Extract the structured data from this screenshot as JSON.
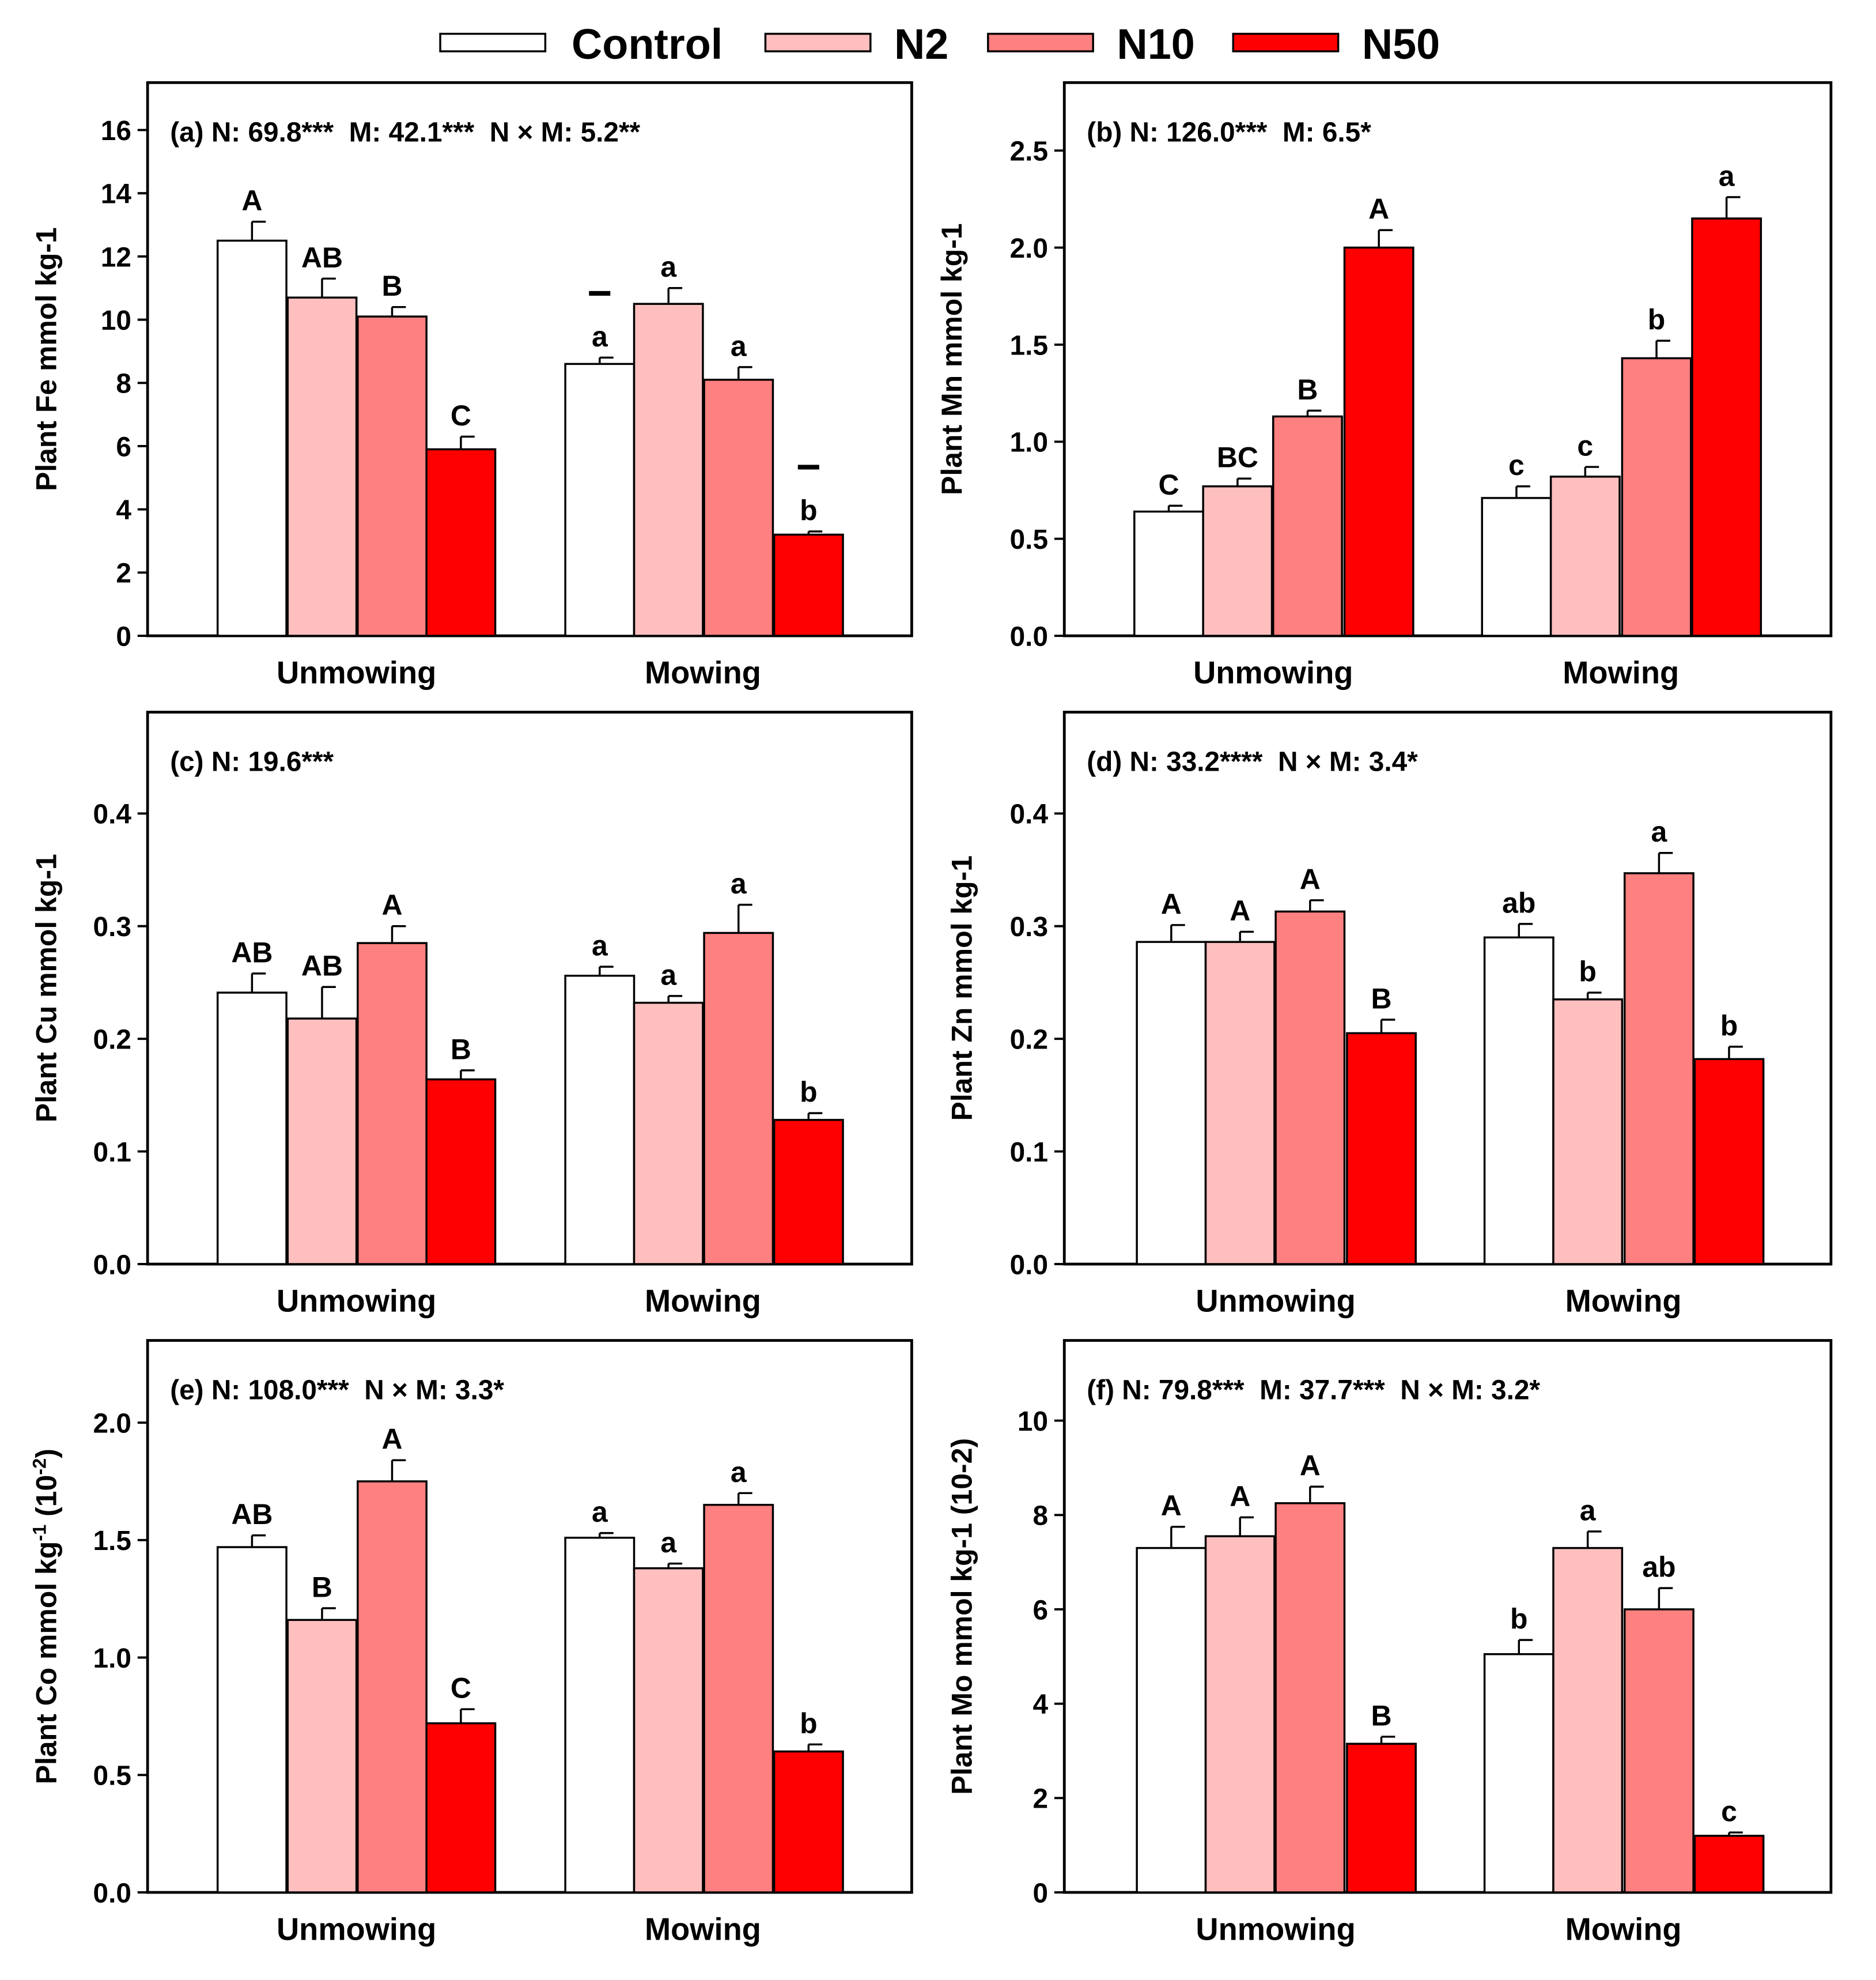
{
  "legend": {
    "items": [
      {
        "label": "Control",
        "color": "#ffffff"
      },
      {
        "label": "N2",
        "color": "#ffbfbf"
      },
      {
        "label": "N10",
        "color": "#ff8080"
      },
      {
        "label": "N50",
        "color": "#ff0000"
      }
    ]
  },
  "chart_data": [
    {
      "type": "bar",
      "panel": "a",
      "title": "(a) N: 69.8***  M: 42.1***  N × M: 5.2**",
      "ylabel": "Plant Fe mmol kg-1",
      "xlabel": "",
      "categories": [
        "Unmowing",
        "Mowing"
      ],
      "ylim": [
        0,
        17.5
      ],
      "yticks": [
        0,
        2,
        4,
        6,
        8,
        10,
        12,
        14,
        16
      ],
      "ytick_labels": [
        "0",
        "2",
        "4",
        "6",
        "8",
        "10",
        "12",
        "14",
        "16"
      ],
      "series": [
        {
          "name": "Control",
          "values": [
            12.5,
            8.6
          ],
          "errors": [
            0.6,
            0.2
          ],
          "letters": [
            "A",
            "a"
          ]
        },
        {
          "name": "N2",
          "values": [
            10.7,
            10.5
          ],
          "errors": [
            0.6,
            0.5
          ],
          "letters": [
            "AB",
            "a"
          ]
        },
        {
          "name": "N10",
          "values": [
            10.1,
            8.1
          ],
          "errors": [
            0.3,
            0.4
          ],
          "letters": [
            "B",
            "a"
          ]
        },
        {
          "name": "N50",
          "values": [
            5.9,
            3.2
          ],
          "errors": [
            0.4,
            0.1
          ],
          "letters": [
            "C",
            "b"
          ]
        }
      ],
      "marks": [
        {
          "series": "Control",
          "category": "Mowing",
          "symbol": "−"
        },
        {
          "series": "N50",
          "category": "Mowing",
          "symbol": "−"
        }
      ]
    },
    {
      "type": "bar",
      "panel": "b",
      "title": "(b) N: 126.0***  M: 6.5*",
      "ylabel": "Plant Mn mmol kg-1",
      "xlabel": "",
      "categories": [
        "Unmowing",
        "Mowing"
      ],
      "ylim": [
        0,
        2.85
      ],
      "yticks": [
        0,
        0.5,
        1.0,
        1.5,
        2.0,
        2.5
      ],
      "ytick_labels": [
        "0.0",
        "0.5",
        "1.0",
        "1.5",
        "2.0",
        "2.5"
      ],
      "series": [
        {
          "name": "Control",
          "values": [
            0.64,
            0.71
          ],
          "errors": [
            0.03,
            0.06
          ],
          "letters": [
            "C",
            "c"
          ]
        },
        {
          "name": "N2",
          "values": [
            0.77,
            0.82
          ],
          "errors": [
            0.04,
            0.05
          ],
          "letters": [
            "BC",
            "c"
          ]
        },
        {
          "name": "N10",
          "values": [
            1.13,
            1.43
          ],
          "errors": [
            0.03,
            0.09
          ],
          "letters": [
            "B",
            "b"
          ]
        },
        {
          "name": "N50",
          "values": [
            2.0,
            2.15
          ],
          "errors": [
            0.09,
            0.11
          ],
          "letters": [
            "A",
            "a"
          ]
        }
      ]
    },
    {
      "type": "bar",
      "panel": "c",
      "title": "(c) N: 19.6***",
      "ylabel": "Plant Cu mmol kg-1",
      "xlabel": "",
      "categories": [
        "Unmowing",
        "Mowing"
      ],
      "ylim": [
        0,
        0.49
      ],
      "yticks": [
        0,
        0.1,
        0.2,
        0.3,
        0.4
      ],
      "ytick_labels": [
        "0.0",
        "0.1",
        "0.2",
        "0.3",
        "0.4"
      ],
      "series": [
        {
          "name": "Control",
          "values": [
            0.241,
            0.256
          ],
          "errors": [
            0.017,
            0.008
          ],
          "letters": [
            "AB",
            "a"
          ]
        },
        {
          "name": "N2",
          "values": [
            0.218,
            0.232
          ],
          "errors": [
            0.028,
            0.006
          ],
          "letters": [
            "AB",
            "a"
          ]
        },
        {
          "name": "N10",
          "values": [
            0.285,
            0.294
          ],
          "errors": [
            0.015,
            0.025
          ],
          "letters": [
            "A",
            "a"
          ]
        },
        {
          "name": "N50",
          "values": [
            0.164,
            0.128
          ],
          "errors": [
            0.008,
            0.006
          ],
          "letters": [
            "B",
            "b"
          ]
        }
      ]
    },
    {
      "type": "bar",
      "panel": "d",
      "title": "(d) N: 33.2****  N × M: 3.4*",
      "ylabel": "Plant Zn mmol kg-1",
      "xlabel": "",
      "categories": [
        "Unmowing",
        "Mowing"
      ],
      "ylim": [
        0,
        0.49
      ],
      "yticks": [
        0,
        0.1,
        0.2,
        0.3,
        0.4
      ],
      "ytick_labels": [
        "0.0",
        "0.1",
        "0.2",
        "0.3",
        "0.4"
      ],
      "series": [
        {
          "name": "Control",
          "values": [
            0.286,
            0.29
          ],
          "errors": [
            0.015,
            0.012
          ],
          "letters": [
            "A",
            "ab"
          ]
        },
        {
          "name": "N2",
          "values": [
            0.286,
            0.235
          ],
          "errors": [
            0.009,
            0.006
          ],
          "letters": [
            "A",
            "b"
          ]
        },
        {
          "name": "N10",
          "values": [
            0.313,
            0.347
          ],
          "errors": [
            0.01,
            0.018
          ],
          "letters": [
            "A",
            "a"
          ]
        },
        {
          "name": "N50",
          "values": [
            0.205,
            0.182
          ],
          "errors": [
            0.012,
            0.011
          ],
          "letters": [
            "B",
            "b"
          ]
        }
      ]
    },
    {
      "type": "bar",
      "panel": "e",
      "title": "(e) N: 108.0***  N × M: 3.3*",
      "ylabel": "Plant Co mmol kg",
      "ylabel_sup1": "-1",
      "ylabel_mid": " (10",
      "ylabel_sup2": "-2",
      "ylabel_end": ")",
      "xlabel": "",
      "categories": [
        "Unmowing",
        "Mowing"
      ],
      "ylim": [
        0,
        2.35
      ],
      "yticks": [
        0,
        0.5,
        1.0,
        1.5,
        2.0
      ],
      "ytick_labels": [
        "0.0",
        "0.5",
        "1.0",
        "1.5",
        "2.0"
      ],
      "series": [
        {
          "name": "Control",
          "values": [
            1.47,
            1.51
          ],
          "errors": [
            0.05,
            0.02
          ],
          "letters": [
            "AB",
            "a"
          ]
        },
        {
          "name": "N2",
          "values": [
            1.16,
            1.38
          ],
          "errors": [
            0.05,
            0.02
          ],
          "letters": [
            "B",
            "a"
          ]
        },
        {
          "name": "N10",
          "values": [
            1.75,
            1.65
          ],
          "errors": [
            0.09,
            0.05
          ],
          "letters": [
            "A",
            "a"
          ]
        },
        {
          "name": "N50",
          "values": [
            0.72,
            0.6
          ],
          "errors": [
            0.06,
            0.03
          ],
          "letters": [
            "C",
            "b"
          ]
        }
      ]
    },
    {
      "type": "bar",
      "panel": "f",
      "title": "(f) N: 79.8***  M: 37.7***  N × M: 3.2*",
      "ylabel": "Plant Mo mmol kg-1 (10-2)",
      "xlabel": "",
      "categories": [
        "Unmowing",
        "Mowing"
      ],
      "ylim": [
        0,
        11.7
      ],
      "yticks": [
        0,
        2,
        4,
        6,
        8,
        10
      ],
      "ytick_labels": [
        "0",
        "2",
        "4",
        "6",
        "8",
        "10"
      ],
      "series": [
        {
          "name": "Control",
          "values": [
            7.3,
            5.05
          ],
          "errors": [
            0.45,
            0.3
          ],
          "letters": [
            "A",
            "b"
          ]
        },
        {
          "name": "N2",
          "values": [
            7.55,
            7.3
          ],
          "errors": [
            0.4,
            0.35
          ],
          "letters": [
            "A",
            "a"
          ]
        },
        {
          "name": "N10",
          "values": [
            8.25,
            6.0
          ],
          "errors": [
            0.35,
            0.45
          ],
          "letters": [
            "A",
            "ab"
          ]
        },
        {
          "name": "N50",
          "values": [
            3.15,
            1.2
          ],
          "errors": [
            0.15,
            0.07
          ],
          "letters": [
            "B",
            "c"
          ]
        }
      ]
    }
  ]
}
